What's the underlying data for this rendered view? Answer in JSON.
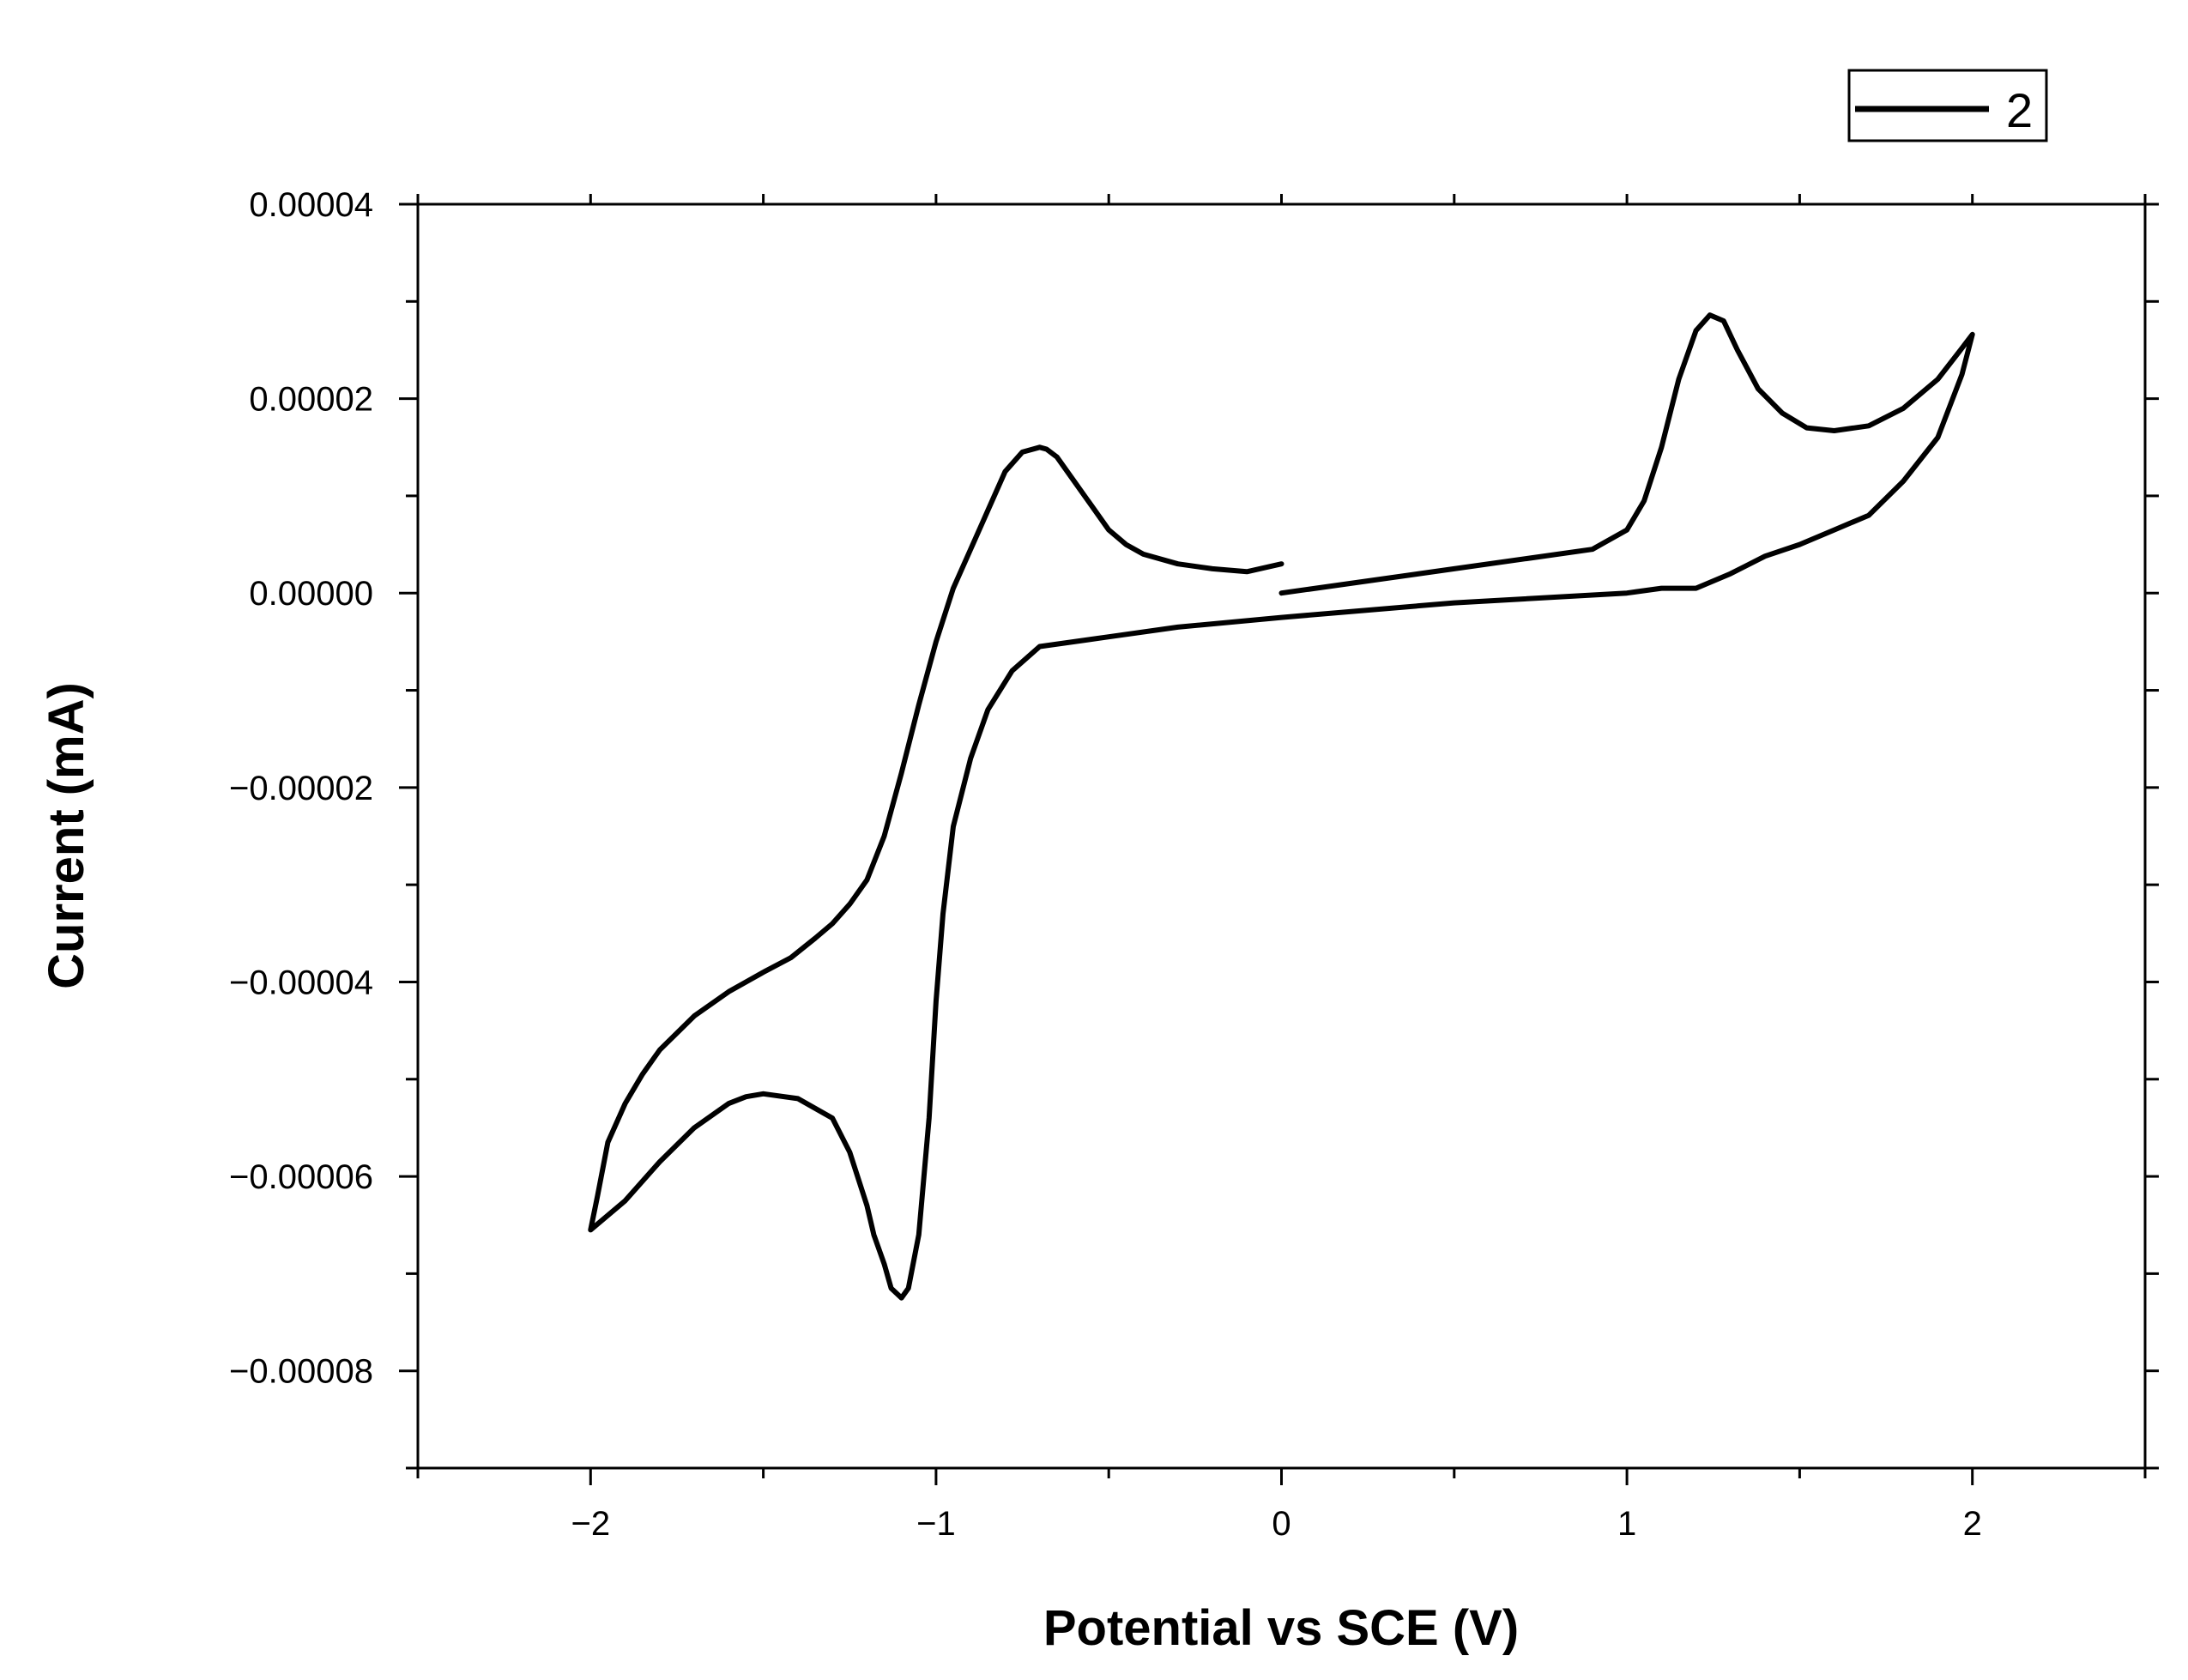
{
  "chart_data": {
    "type": "line",
    "title": "",
    "xlabel": "Potential vs SCE (V)",
    "ylabel": "Current (mA)",
    "xlim": [
      -2.5,
      2.5
    ],
    "ylim": [
      -9e-05,
      4e-05
    ],
    "x_ticks": [
      -2,
      -1,
      0,
      1,
      2
    ],
    "x_tick_labels": [
      "−2",
      "−1",
      "0",
      "1",
      "2"
    ],
    "y_ticks": [
      4e-05,
      2e-05,
      0.0,
      -2e-05,
      -4e-05,
      -6e-05,
      -8e-05
    ],
    "y_tick_labels": [
      "0.00004",
      "0.00002",
      "0.00000",
      "−0.00002",
      "−0.00004",
      "−0.00006",
      "−0.00008"
    ],
    "grid": false,
    "legend_position": "top-right",
    "series": [
      {
        "name": "2",
        "color": "#000000",
        "x": [
          0.0,
          0.5,
          0.9,
          1.0,
          1.05,
          1.1,
          1.15,
          1.2,
          1.24,
          1.28,
          1.32,
          1.38,
          1.45,
          1.52,
          1.6,
          1.7,
          1.8,
          1.9,
          1.97,
          2.0,
          1.97,
          1.9,
          1.8,
          1.7,
          1.6,
          1.5,
          1.4,
          1.3,
          1.2,
          1.1,
          1.0,
          0.5,
          0.0,
          -0.3,
          -0.5,
          -0.7,
          -0.78,
          -0.85,
          -0.9,
          -0.95,
          -0.98,
          -1.0,
          -1.02,
          -1.05,
          -1.08,
          -1.1,
          -1.13,
          -1.15,
          -1.18,
          -1.2,
          -1.25,
          -1.3,
          -1.4,
          -1.5,
          -1.55,
          -1.6,
          -1.7,
          -1.8,
          -1.9,
          -2.0,
          -1.98,
          -1.95,
          -1.9,
          -1.85,
          -1.8,
          -1.7,
          -1.6,
          -1.5,
          -1.42,
          -1.35,
          -1.3,
          -1.25,
          -1.2,
          -1.15,
          -1.1,
          -1.05,
          -1.0,
          -0.95,
          -0.9,
          -0.85,
          -0.8,
          -0.75,
          -0.7,
          -0.68,
          -0.65,
          -0.6,
          -0.55,
          -0.5,
          -0.45,
          -0.4,
          -0.3,
          -0.2,
          -0.1,
          0.0
        ],
        "y": [
          0.0,
          2.5e-06,
          4.5e-06,
          6.5e-06,
          9.5e-06,
          1.5e-05,
          2.2e-05,
          2.7e-05,
          2.86e-05,
          2.8e-05,
          2.5e-05,
          2.1e-05,
          1.85e-05,
          1.7e-05,
          1.67e-05,
          1.72e-05,
          1.9e-05,
          2.2e-05,
          2.52e-05,
          2.66e-05,
          2.25e-05,
          1.6e-05,
          1.15e-05,
          8e-06,
          6.5e-06,
          5e-06,
          3.8e-06,
          2e-06,
          5e-07,
          5e-07,
          0.0,
          -1e-06,
          -2.5e-06,
          -3.5e-06,
          -4.5e-06,
          -5.5e-06,
          -8e-06,
          -1.2e-05,
          -1.7e-05,
          -2.4e-05,
          -3.3e-05,
          -4.2e-05,
          -5.4e-05,
          -6.6e-05,
          -7.15e-05,
          -7.25e-05,
          -7.15e-05,
          -6.9e-05,
          -6.6e-05,
          -6.3e-05,
          -5.75e-05,
          -5.4e-05,
          -5.2e-05,
          -5.15e-05,
          -5.18e-05,
          -5.25e-05,
          -5.5e-05,
          -5.85e-05,
          -6.25e-05,
          -6.55e-05,
          -6.2e-05,
          -5.65e-05,
          -5.25e-05,
          -4.95e-05,
          -4.7e-05,
          -4.35e-05,
          -4.1e-05,
          -3.9e-05,
          -3.75e-05,
          -3.55e-05,
          -3.4e-05,
          -3.2e-05,
          -2.95e-05,
          -2.5e-05,
          -1.85e-05,
          -1.15e-05,
          -5e-06,
          5e-07,
          4.5e-06,
          8.5e-06,
          1.25e-05,
          1.45e-05,
          1.5e-05,
          1.48e-05,
          1.4e-05,
          1.15e-05,
          9e-06,
          6.5e-06,
          5e-06,
          4e-06,
          3e-06,
          2.5e-06,
          2.2e-06,
          3e-06
        ]
      }
    ]
  }
}
